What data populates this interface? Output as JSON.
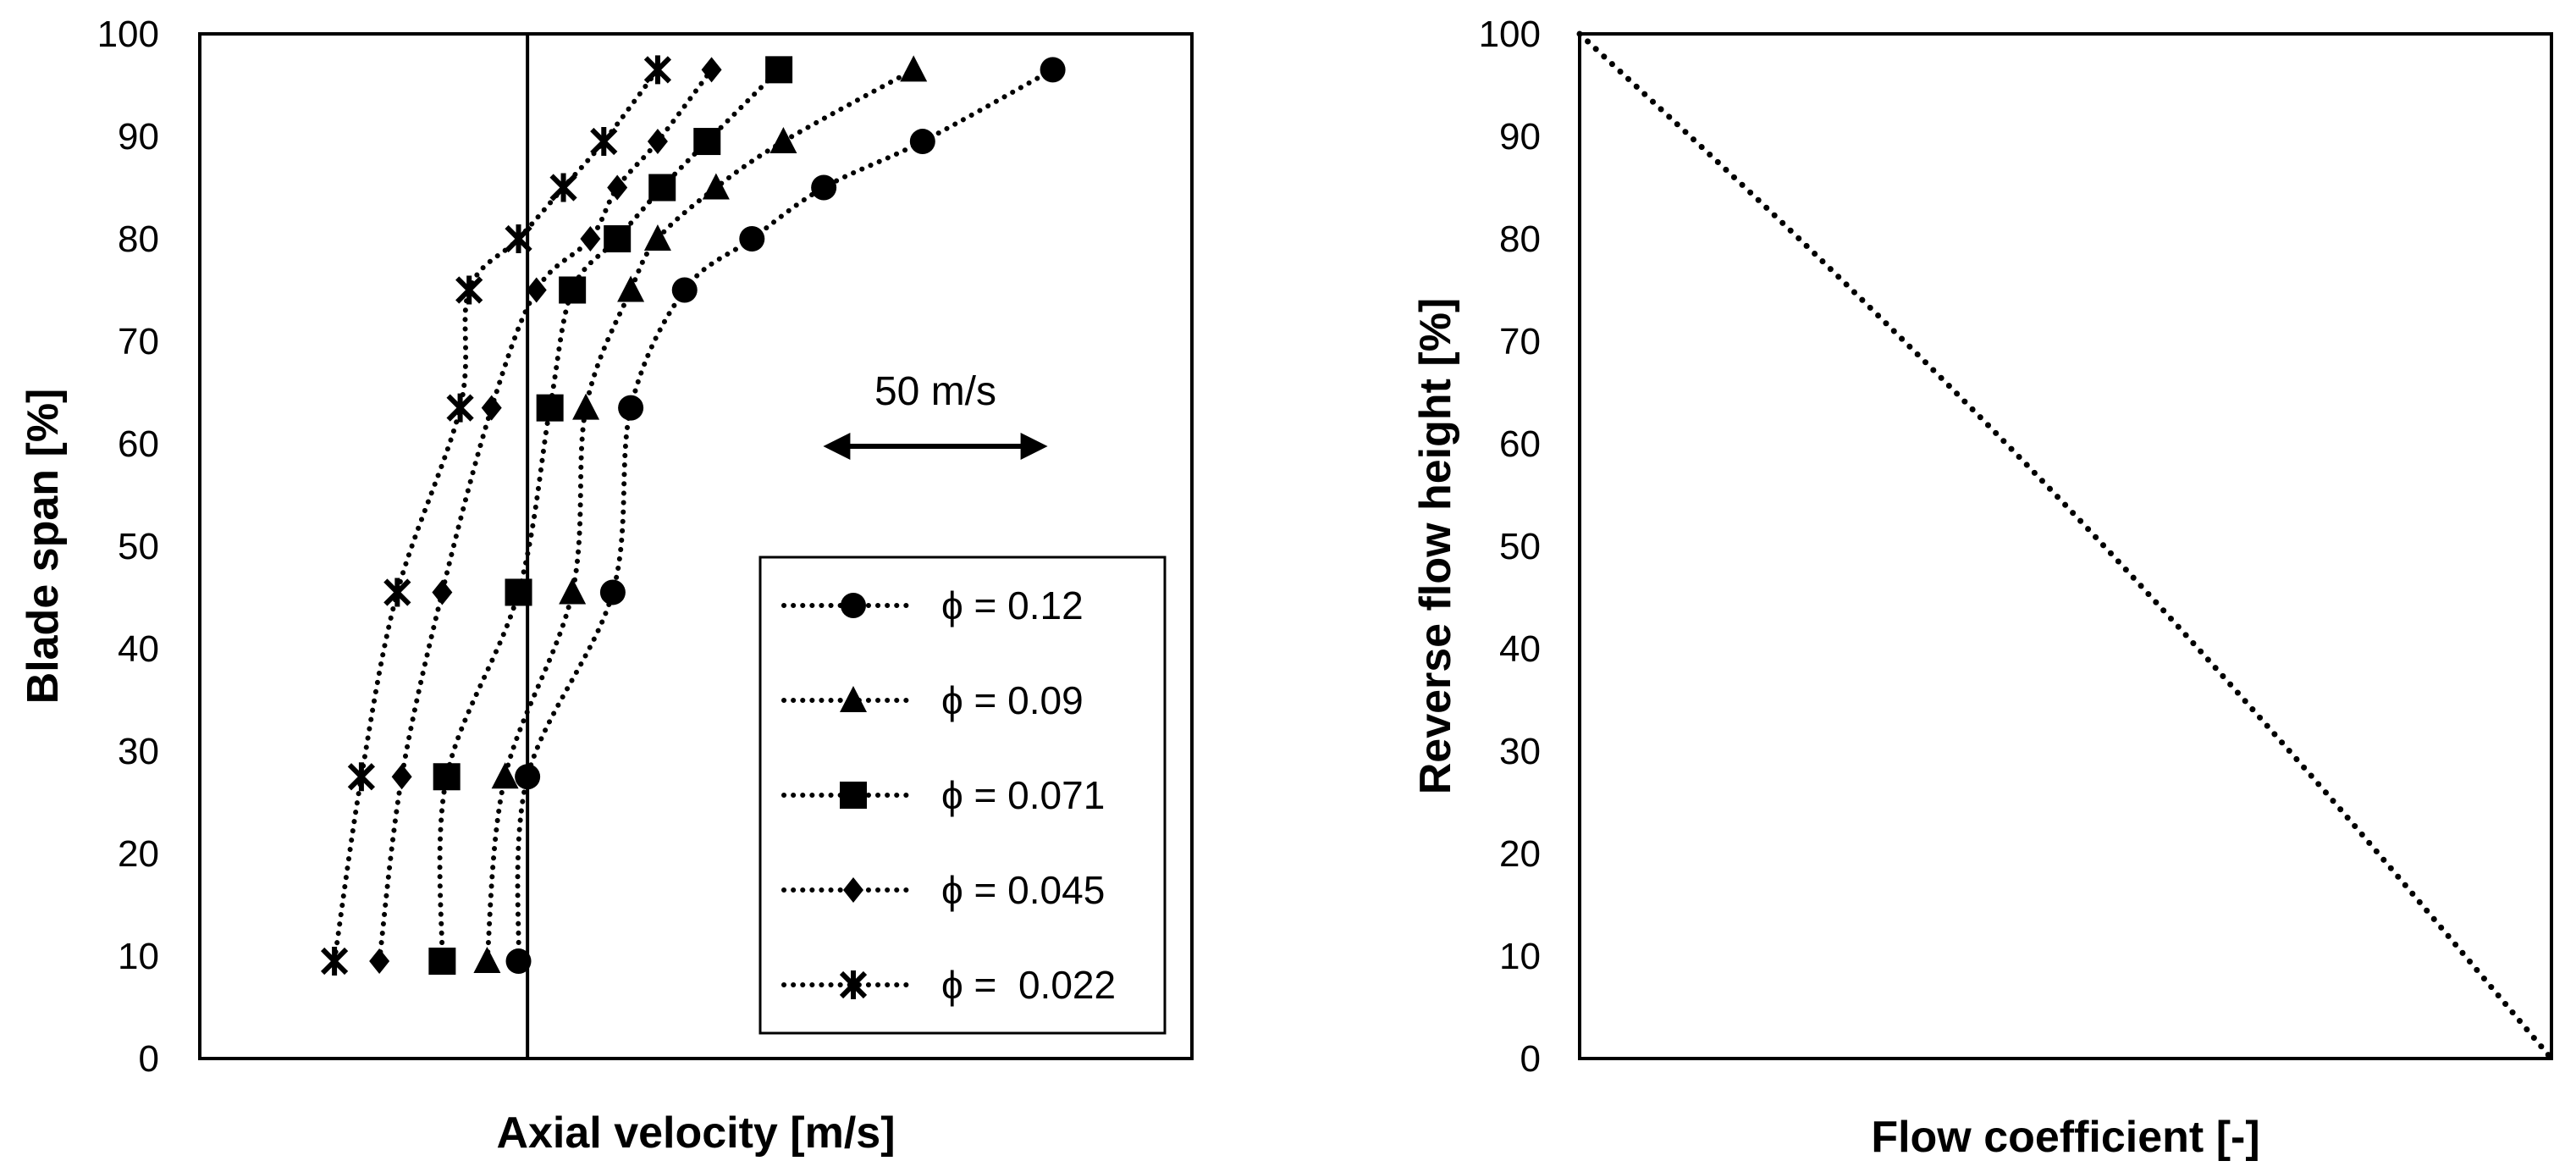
{
  "chart_data": [
    {
      "type": "line",
      "title": "",
      "xlabel": "Axial velocity [m/s]",
      "ylabel": "Blade span [%]",
      "ylim": [
        0,
        100
      ],
      "yticks": [
        "0",
        "10",
        "20",
        "30",
        "40",
        "50",
        "60",
        "70",
        "80",
        "90",
        "100"
      ],
      "x_units": "relative axial velocity (m/s); x axis carries no tick labels",
      "xlim": [
        -40,
        181
      ],
      "reference_line_x": 33,
      "scale_annotation": {
        "label": "50 m/s",
        "length_ms": 50
      },
      "legend_position": "lower-right",
      "series": [
        {
          "name": "ϕ = 0.12",
          "marker": "circle",
          "points": [
            [
              31,
              9.5
            ],
            [
              33,
              27.5
            ],
            [
              52,
              45.5
            ],
            [
              56,
              63.5
            ],
            [
              68,
              75
            ],
            [
              83,
              80
            ],
            [
              99,
              85
            ],
            [
              121,
              89.5
            ],
            [
              150,
              96.5
            ]
          ]
        },
        {
          "name": "ϕ = 0.09",
          "marker": "triangle",
          "points": [
            [
              24,
              9.5
            ],
            [
              28,
              27.5
            ],
            [
              43,
              45.5
            ],
            [
              46,
              63.5
            ],
            [
              56,
              75
            ],
            [
              62,
              80
            ],
            [
              75,
              85
            ],
            [
              90,
              89.5
            ],
            [
              119,
              96.5
            ]
          ]
        },
        {
          "name": "ϕ = 0.071",
          "marker": "square",
          "points": [
            [
              14,
              9.5
            ],
            [
              15,
              27.5
            ],
            [
              31,
              45.5
            ],
            [
              38,
              63.5
            ],
            [
              43,
              75
            ],
            [
              53,
              80
            ],
            [
              63,
              85
            ],
            [
              73,
              89.5
            ],
            [
              89,
              96.5
            ]
          ]
        },
        {
          "name": "ϕ = 0.045",
          "marker": "diamond",
          "points": [
            [
              0,
              9.5
            ],
            [
              5,
              27.5
            ],
            [
              14,
              45.5
            ],
            [
              25,
              63.5
            ],
            [
              35,
              75
            ],
            [
              47,
              80
            ],
            [
              53,
              85
            ],
            [
              62,
              89.5
            ],
            [
              74,
              96.5
            ]
          ]
        },
        {
          "name": "ϕ =  0.022",
          "marker": "asterisk",
          "points": [
            [
              -10,
              9.5
            ],
            [
              -4,
              27.5
            ],
            [
              4,
              45.5
            ],
            [
              18,
              63.5
            ],
            [
              20,
              75
            ],
            [
              31,
              80
            ],
            [
              41,
              85
            ],
            [
              50,
              89.5
            ],
            [
              62,
              96.5
            ]
          ]
        }
      ]
    },
    {
      "type": "line",
      "title": "",
      "xlabel": "Flow coefficient [-]",
      "ylabel": "Reverse flow height [%]",
      "ylim": [
        0,
        100
      ],
      "yticks": [
        "0",
        "10",
        "20",
        "30",
        "40",
        "50",
        "60",
        "70",
        "80",
        "90",
        "100"
      ],
      "x_units": "relative flow coefficient, 0 to 1; no tick labels",
      "xlim": [
        0,
        1
      ],
      "series": [
        {
          "name": "reverse flow height",
          "style": "dotted",
          "points": [
            [
              0,
              100
            ],
            [
              0.25,
              77.8
            ],
            [
              0.5,
              54
            ],
            [
              0.75,
              27.9
            ],
            [
              1,
              0
            ]
          ]
        }
      ]
    }
  ]
}
